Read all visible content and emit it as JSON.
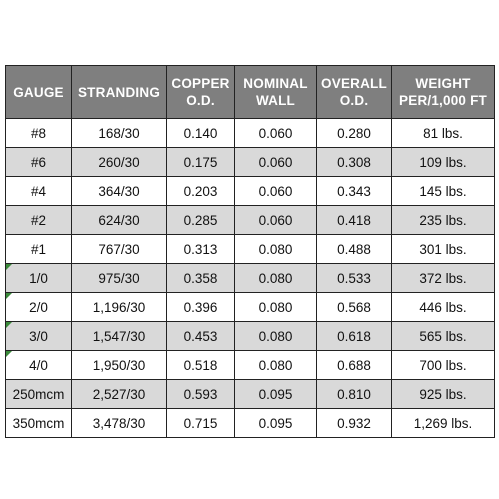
{
  "table": {
    "headers": [
      [
        "GAUGE"
      ],
      [
        "STRANDING"
      ],
      [
        "COPPER",
        "O.D."
      ],
      [
        "NOMINAL",
        "WALL"
      ],
      [
        "OVERALL",
        "O.D."
      ],
      [
        "WEIGHT",
        "PER/1,000 FT"
      ]
    ],
    "rows": [
      [
        "#8",
        "168/30",
        "0.140",
        "0.060",
        "0.280",
        "81 lbs."
      ],
      [
        "#6",
        "260/30",
        "0.175",
        "0.060",
        "0.308",
        "109 lbs."
      ],
      [
        "#4",
        "364/30",
        "0.203",
        "0.060",
        "0.343",
        "145 lbs."
      ],
      [
        "#2",
        "624/30",
        "0.285",
        "0.060",
        "0.418",
        "235 lbs."
      ],
      [
        "#1",
        "767/30",
        "0.313",
        "0.080",
        "0.488",
        "301 lbs."
      ],
      [
        "1/0",
        "975/30",
        "0.358",
        "0.080",
        "0.533",
        "372 lbs."
      ],
      [
        "2/0",
        "1,196/30",
        "0.396",
        "0.080",
        "0.568",
        "446 lbs."
      ],
      [
        "3/0",
        "1,547/30",
        "0.453",
        "0.080",
        "0.618",
        "565 lbs."
      ],
      [
        "4/0",
        "1,950/30",
        "0.518",
        "0.080",
        "0.688",
        "700 lbs."
      ],
      [
        "250mcm",
        "2,527/30",
        "0.593",
        "0.095",
        "0.810",
        "925 lbs."
      ],
      [
        "350mcm",
        "3,478/30",
        "0.715",
        "0.095",
        "0.932",
        "1,269 lbs."
      ]
    ],
    "flagged_rows": [
      5,
      6,
      7,
      8
    ]
  },
  "colors": {
    "header_bg": "#7f7f7f",
    "header_text": "#ffffff",
    "alt_row_bg": "#d9d9d9",
    "flag_marker": "#3a8a3a"
  }
}
